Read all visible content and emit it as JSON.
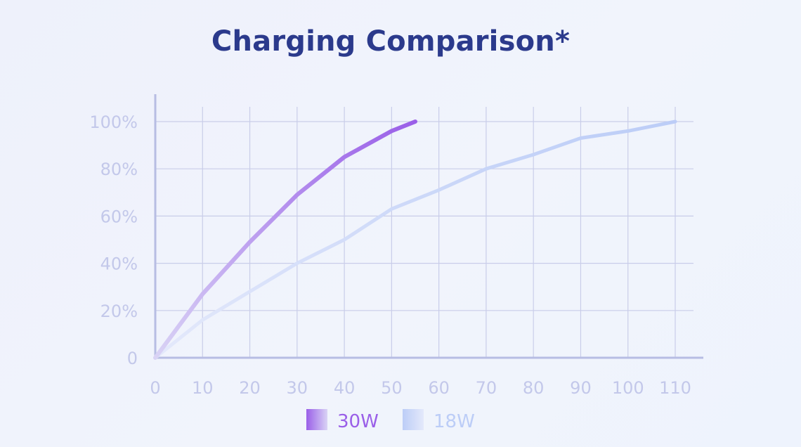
{
  "chart_data": {
    "type": "line",
    "title": "Charging Comparison*",
    "xlabel": "",
    "ylabel": "",
    "x_ticks": [
      "0",
      "10",
      "20",
      "30",
      "40",
      "50",
      "60",
      "70",
      "80",
      "90",
      "100",
      "110"
    ],
    "y_ticks": [
      "0",
      "20%",
      "40%",
      "60%",
      "80%",
      "100%"
    ],
    "xlim": [
      0,
      110
    ],
    "ylim": [
      0,
      100
    ],
    "grid": true,
    "legend_position": "bottom-center",
    "series": [
      {
        "name": "30W",
        "color_start": "#d9d3f5",
        "color_end": "#9a5fe8",
        "x": [
          0,
          10,
          20,
          30,
          40,
          50,
          55
        ],
        "y": [
          0,
          27,
          49,
          69,
          85,
          96,
          100
        ]
      },
      {
        "name": "18W",
        "color_start": "#e4e9fb",
        "color_end": "#bccdf7",
        "x": [
          0,
          10,
          20,
          30,
          40,
          50,
          60,
          70,
          80,
          90,
          100,
          110
        ],
        "y": [
          0,
          16,
          28,
          40,
          50,
          63,
          71,
          80,
          86,
          93,
          96,
          100
        ]
      }
    ],
    "axis_color": "#b7bde3",
    "grid_color": "#c9cde9",
    "tick_color": "#c3c8ea"
  }
}
